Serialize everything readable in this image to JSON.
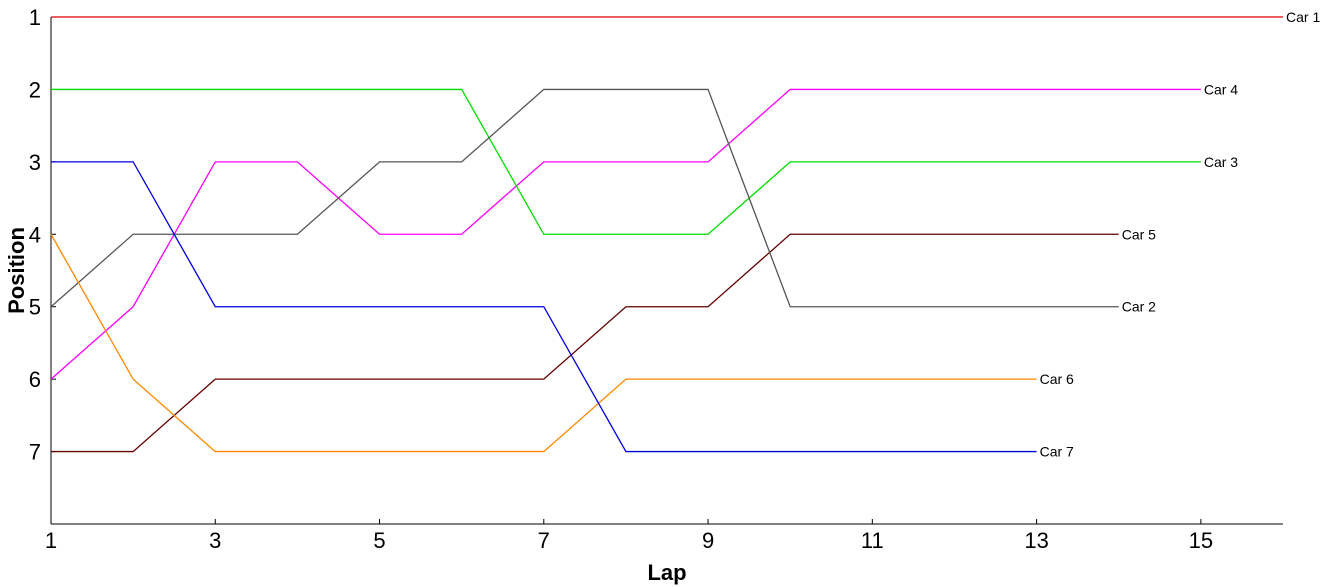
{
  "chart_data": {
    "type": "line",
    "title": "",
    "xlabel": "Lap",
    "ylabel": "Position",
    "xlim": [
      1,
      16
    ],
    "ylim": [
      8,
      1
    ],
    "y_reversed": true,
    "grid": false,
    "legend": "none",
    "x_ticks": [
      "1",
      "3",
      "5",
      "7",
      "9",
      "11",
      "13",
      "15"
    ],
    "y_ticks": [
      "1",
      "2",
      "3",
      "4",
      "5",
      "6",
      "7"
    ],
    "series": [
      {
        "name": "Car 1",
        "color": "#dd0000",
        "x": [
          1,
          2,
          3,
          4,
          5,
          6,
          7,
          8,
          9,
          10,
          11,
          12,
          13,
          14,
          15,
          16
        ],
        "y": [
          1,
          1,
          1,
          1,
          1,
          1,
          1,
          1,
          1,
          1,
          1,
          1,
          1,
          1,
          1,
          1
        ]
      },
      {
        "name": "Car 4",
        "color": "#ff00ff",
        "x": [
          1,
          2,
          3,
          4,
          5,
          6,
          7,
          8,
          9,
          10,
          11,
          12,
          13,
          14,
          15
        ],
        "y": [
          6,
          5,
          3,
          3,
          4,
          4,
          3,
          3,
          3,
          2,
          2,
          2,
          2,
          2,
          2
        ]
      },
      {
        "name": "Car 3",
        "color": "#00dd00",
        "x": [
          1,
          2,
          3,
          4,
          5,
          6,
          7,
          8,
          9,
          10,
          11,
          12,
          13,
          14,
          15
        ],
        "y": [
          2,
          2,
          2,
          2,
          2,
          2,
          4,
          4,
          4,
          3,
          3,
          3,
          3,
          3,
          3
        ]
      },
      {
        "name": "Car 5",
        "color": "#660000",
        "x": [
          1,
          2,
          3,
          4,
          5,
          6,
          7,
          8,
          9,
          10,
          11,
          12,
          13,
          14
        ],
        "y": [
          7,
          7,
          6,
          6,
          6,
          6,
          6,
          5,
          5,
          4,
          4,
          4,
          4,
          4
        ]
      },
      {
        "name": "Car 2",
        "color": "#555555",
        "x": [
          1,
          2,
          3,
          4,
          5,
          6,
          7,
          8,
          9,
          10,
          11,
          12,
          13,
          14
        ],
        "y": [
          5,
          4,
          4,
          4,
          3,
          3,
          2,
          2,
          2,
          5,
          5,
          5,
          5,
          5
        ]
      },
      {
        "name": "Car 6",
        "color": "#ff8800",
        "x": [
          1,
          2,
          3,
          4,
          5,
          6,
          7,
          8,
          9,
          10,
          11,
          12,
          13
        ],
        "y": [
          4,
          6,
          7,
          7,
          7,
          7,
          7,
          6,
          6,
          6,
          6,
          6,
          6
        ]
      },
      {
        "name": "Car 7",
        "color": "#0000dd",
        "x": [
          1,
          2,
          3,
          4,
          5,
          6,
          7,
          8,
          9,
          10,
          11,
          12,
          13
        ],
        "y": [
          3,
          3,
          5,
          5,
          5,
          5,
          5,
          7,
          7,
          7,
          7,
          7,
          7
        ]
      }
    ]
  }
}
